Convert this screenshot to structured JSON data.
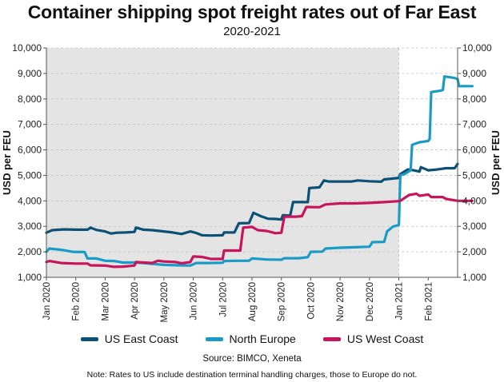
{
  "chart_data": {
    "type": "line",
    "title": "Container shipping spot freight rates out of Far East",
    "subtitle": "2020-2021",
    "ylabel_left": "USD per FEU",
    "ylabel_right": "USD per FEU",
    "ylim": [
      1000,
      10000
    ],
    "yticks": [
      "1,000",
      "2,000",
      "3,000",
      "4,000",
      "5,000",
      "6,000",
      "7,000",
      "8,000",
      "9,000",
      "10,000"
    ],
    "ytick_values": [
      1000,
      2000,
      3000,
      4000,
      5000,
      6000,
      7000,
      8000,
      9000,
      10000
    ],
    "x_months": [
      "Jan 2020",
      "Feb 2020",
      "Mar 2020",
      "Apr 2020",
      "May 2020",
      "Jun 2020",
      "Jul 2020",
      "Aug 2020",
      "Sep 2020",
      "Oct 2020",
      "Nov 2020",
      "Dec 2020",
      "Jan 2021",
      "Feb 2021"
    ],
    "x_range_months": [
      0,
      14.0
    ],
    "shaded_range_months": [
      0,
      12
    ],
    "grid": true,
    "legend_position": "bottom",
    "series": [
      {
        "name": "US East Coast",
        "color": "#0b5175",
        "points": [
          [
            0,
            2750
          ],
          [
            0.2,
            2850
          ],
          [
            0.6,
            2880
          ],
          [
            1.0,
            2870
          ],
          [
            1.4,
            2870
          ],
          [
            1.5,
            2950
          ],
          [
            1.7,
            2860
          ],
          [
            2.0,
            2800
          ],
          [
            2.2,
            2720
          ],
          [
            2.4,
            2750
          ],
          [
            2.7,
            2760
          ],
          [
            3.0,
            2780
          ],
          [
            3.05,
            2950
          ],
          [
            3.3,
            2870
          ],
          [
            3.6,
            2850
          ],
          [
            4.0,
            2800
          ],
          [
            4.3,
            2760
          ],
          [
            4.6,
            2700
          ],
          [
            4.9,
            2800
          ],
          [
            5.1,
            2740
          ],
          [
            5.3,
            2650
          ],
          [
            5.6,
            2640
          ],
          [
            6.0,
            2650
          ],
          [
            6.05,
            2760
          ],
          [
            6.4,
            2760
          ],
          [
            6.55,
            3120
          ],
          [
            6.9,
            3130
          ],
          [
            7.05,
            3530
          ],
          [
            7.3,
            3400
          ],
          [
            7.55,
            3300
          ],
          [
            7.8,
            3290
          ],
          [
            8.0,
            3270
          ],
          [
            8.05,
            3440
          ],
          [
            8.3,
            3420
          ],
          [
            8.4,
            3950
          ],
          [
            8.9,
            3950
          ],
          [
            8.95,
            4500
          ],
          [
            9.3,
            4530
          ],
          [
            9.45,
            4800
          ],
          [
            9.6,
            4760
          ],
          [
            10.0,
            4760
          ],
          [
            10.4,
            4760
          ],
          [
            10.6,
            4800
          ],
          [
            11.0,
            4770
          ],
          [
            11.4,
            4750
          ],
          [
            11.5,
            4840
          ],
          [
            12.0,
            4900
          ],
          [
            12.05,
            5050
          ],
          [
            12.3,
            5230
          ],
          [
            12.5,
            5200
          ],
          [
            12.7,
            5150
          ],
          [
            12.75,
            5320
          ],
          [
            13.0,
            5200
          ],
          [
            13.3,
            5230
          ],
          [
            13.6,
            5280
          ],
          [
            13.9,
            5280
          ],
          [
            14.0,
            5450
          ]
        ]
      },
      {
        "name": "North Europe",
        "color": "#1a9bc6",
        "points": [
          [
            0,
            2000
          ],
          [
            0.1,
            2130
          ],
          [
            0.5,
            2080
          ],
          [
            0.9,
            2000
          ],
          [
            1.3,
            1990
          ],
          [
            1.4,
            1740
          ],
          [
            1.7,
            1740
          ],
          [
            2.0,
            1650
          ],
          [
            2.3,
            1640
          ],
          [
            2.6,
            1580
          ],
          [
            3.0,
            1580
          ],
          [
            3.3,
            1560
          ],
          [
            3.6,
            1530
          ],
          [
            4.0,
            1490
          ],
          [
            4.5,
            1470
          ],
          [
            4.9,
            1460
          ],
          [
            5.1,
            1560
          ],
          [
            5.5,
            1560
          ],
          [
            6.0,
            1570
          ],
          [
            6.05,
            1640
          ],
          [
            6.5,
            1650
          ],
          [
            6.9,
            1650
          ],
          [
            7.0,
            1740
          ],
          [
            7.5,
            1700
          ],
          [
            8.0,
            1690
          ],
          [
            8.1,
            1750
          ],
          [
            8.6,
            1750
          ],
          [
            8.9,
            1790
          ],
          [
            9.0,
            2000
          ],
          [
            9.4,
            2010
          ],
          [
            9.5,
            2130
          ],
          [
            10.0,
            2160
          ],
          [
            10.5,
            2180
          ],
          [
            11.0,
            2200
          ],
          [
            11.1,
            2380
          ],
          [
            11.5,
            2390
          ],
          [
            11.6,
            2800
          ],
          [
            11.8,
            2990
          ],
          [
            12.0,
            3050
          ],
          [
            12.05,
            5000
          ],
          [
            12.2,
            5050
          ],
          [
            12.4,
            5200
          ],
          [
            12.45,
            6200
          ],
          [
            12.7,
            6300
          ],
          [
            13.0,
            6350
          ],
          [
            13.05,
            6430
          ],
          [
            13.1,
            8270
          ],
          [
            13.4,
            8320
          ],
          [
            13.5,
            8350
          ],
          [
            13.55,
            8880
          ],
          [
            13.9,
            8820
          ],
          [
            14.0,
            8780
          ],
          [
            14.05,
            8500
          ],
          [
            14.5,
            8500
          ]
        ]
      },
      {
        "name": "US West Coast",
        "color": "#c8145a",
        "points": [
          [
            0,
            1600
          ],
          [
            0.1,
            1640
          ],
          [
            0.5,
            1560
          ],
          [
            1.0,
            1540
          ],
          [
            1.4,
            1540
          ],
          [
            1.5,
            1470
          ],
          [
            2.0,
            1460
          ],
          [
            2.3,
            1410
          ],
          [
            2.6,
            1420
          ],
          [
            3.0,
            1460
          ],
          [
            3.05,
            1600
          ],
          [
            3.3,
            1580
          ],
          [
            3.6,
            1560
          ],
          [
            3.8,
            1650
          ],
          [
            4.0,
            1620
          ],
          [
            4.4,
            1600
          ],
          [
            4.6,
            1550
          ],
          [
            4.9,
            1600
          ],
          [
            5.0,
            1820
          ],
          [
            5.3,
            1800
          ],
          [
            5.6,
            1720
          ],
          [
            6.0,
            1720
          ],
          [
            6.05,
            2050
          ],
          [
            6.6,
            2050
          ],
          [
            6.7,
            2950
          ],
          [
            7.0,
            2980
          ],
          [
            7.2,
            2850
          ],
          [
            7.5,
            2820
          ],
          [
            7.8,
            2730
          ],
          [
            8.0,
            2750
          ],
          [
            8.1,
            3380
          ],
          [
            8.5,
            3380
          ],
          [
            8.7,
            3400
          ],
          [
            8.85,
            3760
          ],
          [
            9.3,
            3750
          ],
          [
            9.5,
            3860
          ],
          [
            10.0,
            3900
          ],
          [
            10.5,
            3900
          ],
          [
            11.0,
            3920
          ],
          [
            11.5,
            3950
          ],
          [
            12.0,
            3990
          ],
          [
            12.05,
            4000
          ],
          [
            12.35,
            4230
          ],
          [
            12.6,
            4280
          ],
          [
            12.7,
            4200
          ],
          [
            13.0,
            4250
          ],
          [
            13.1,
            4150
          ],
          [
            13.5,
            4150
          ],
          [
            13.6,
            4080
          ],
          [
            14.0,
            4000
          ],
          [
            14.5,
            4000
          ]
        ]
      }
    ]
  },
  "source": "Source: BIMCO, Xeneta",
  "note": "Note: Rates to US include destination terminal handling charges, those to Europe do not."
}
